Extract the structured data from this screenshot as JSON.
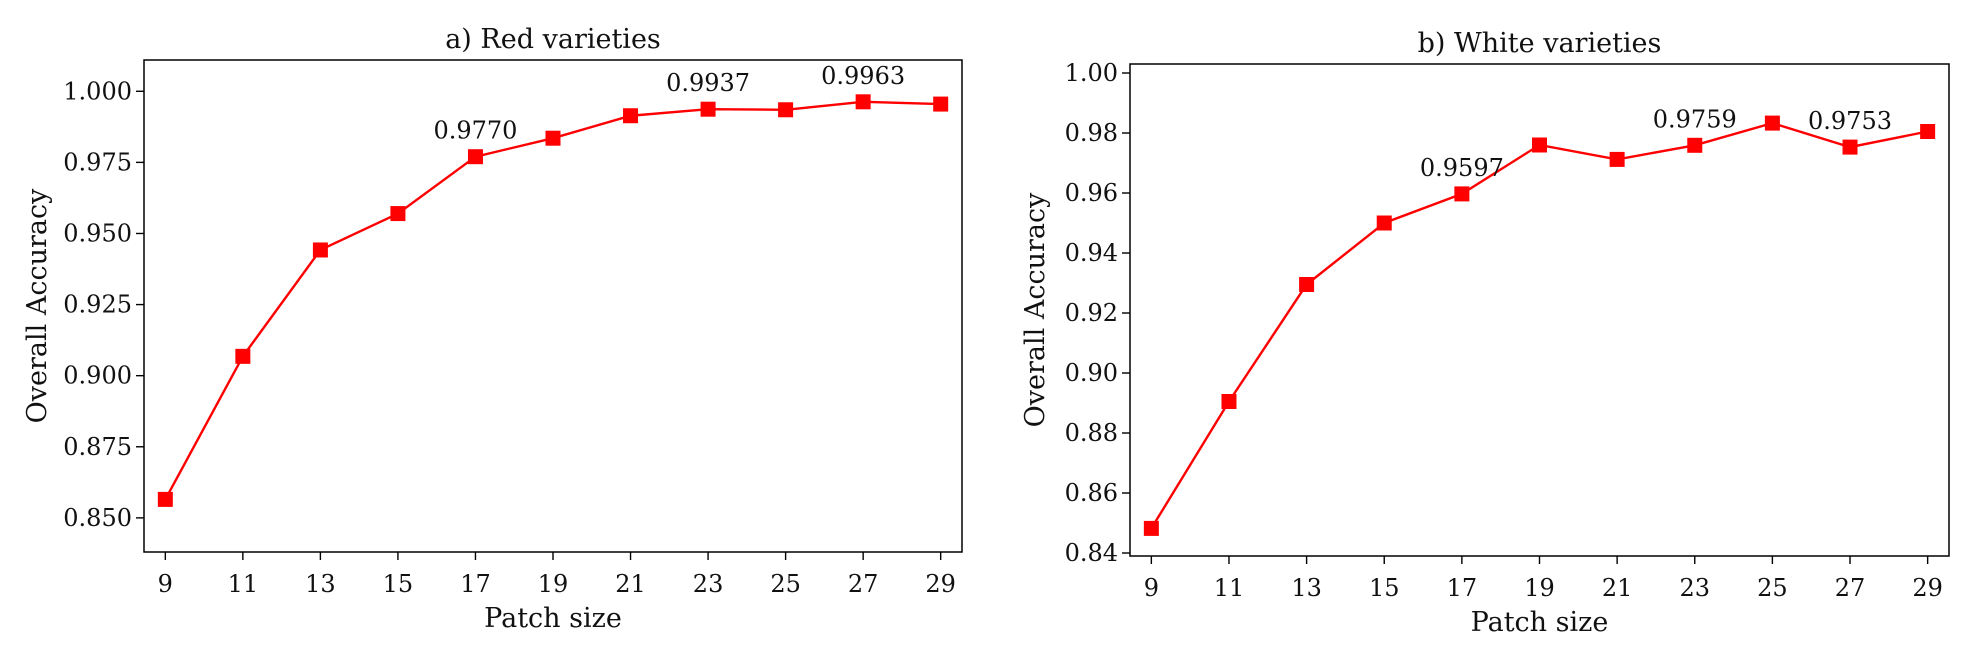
{
  "chart_data": [
    {
      "type": "line",
      "title": "a) Red varieties",
      "xlabel": "Patch size",
      "ylabel": "Overall Accuracy",
      "x": [
        9,
        11,
        13,
        15,
        17,
        19,
        21,
        23,
        25,
        27,
        29
      ],
      "xticks": [
        9,
        11,
        13,
        15,
        17,
        19,
        21,
        23,
        25,
        27,
        29
      ],
      "xlim": [
        8.45,
        29.55
      ],
      "ylim": [
        0.838,
        1.011
      ],
      "yticks": [
        "0.850",
        "0.875",
        "0.900",
        "0.925",
        "0.950",
        "0.975",
        "1.000"
      ],
      "color": "#ff0000",
      "marker": "square",
      "series": [
        {
          "values": [
            0.8565,
            0.9068,
            0.9442,
            0.957,
            0.977,
            0.9835,
            0.9914,
            0.9937,
            0.9935,
            0.9963,
            0.9955
          ]
        }
      ],
      "annotations": [
        {
          "x": 17,
          "y": 0.977,
          "text": "0.9770"
        },
        {
          "x": 23,
          "y": 0.9937,
          "text": "0.9937"
        },
        {
          "x": 27,
          "y": 0.9963,
          "text": "0.9963"
        }
      ],
      "grid": false,
      "legend": null
    },
    {
      "type": "line",
      "title": "b) White varieties",
      "xlabel": "Patch size",
      "ylabel": "Overall Accuracy",
      "x": [
        9,
        11,
        13,
        15,
        17,
        19,
        21,
        23,
        25,
        27,
        29
      ],
      "xticks": [
        9,
        11,
        13,
        15,
        17,
        19,
        21,
        23,
        25,
        27,
        29
      ],
      "xlim": [
        8.45,
        29.55
      ],
      "ylim": [
        0.839,
        1.003
      ],
      "yticks": [
        "0.84",
        "0.86",
        "0.88",
        "0.90",
        "0.92",
        "0.94",
        "0.96",
        "0.98",
        "1.00"
      ],
      "color": "#ff0000",
      "marker": "square",
      "series": [
        {
          "values": [
            0.8482,
            0.8905,
            0.9295,
            0.95,
            0.9597,
            0.976,
            0.9712,
            0.9759,
            0.9833,
            0.9753,
            0.9805
          ]
        }
      ],
      "annotations": [
        {
          "x": 17,
          "y": 0.9597,
          "text": "0.9597"
        },
        {
          "x": 23,
          "y": 0.9759,
          "text": "0.9759"
        },
        {
          "x": 27,
          "y": 0.9753,
          "text": "0.9753"
        }
      ],
      "grid": false,
      "legend": null
    }
  ]
}
